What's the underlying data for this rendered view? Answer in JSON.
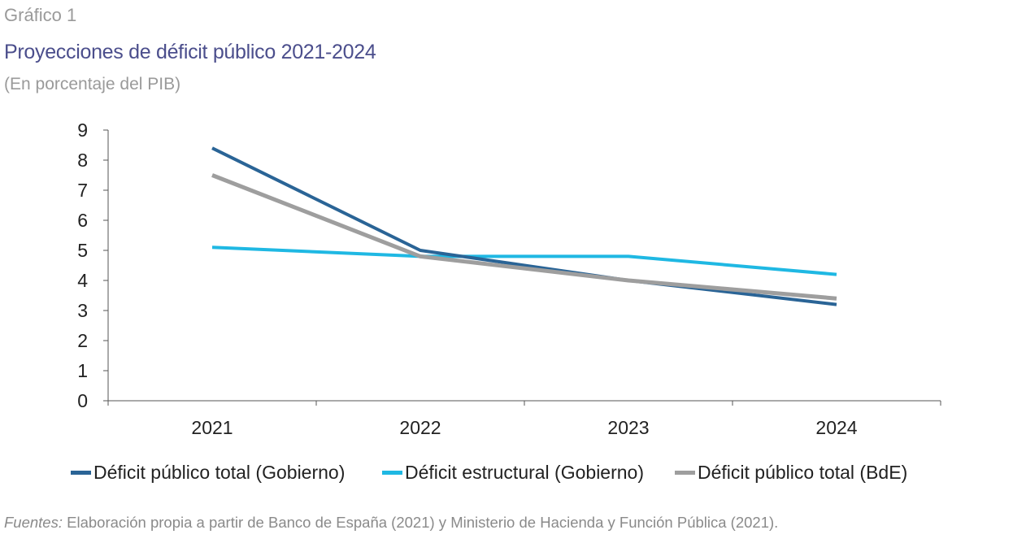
{
  "header": {
    "figure_label": "Gráfico 1",
    "title": "Proyecciones de déficit público 2021-2024",
    "subtitle": "(En porcentaje del PIB)"
  },
  "chart_data": {
    "type": "line",
    "title": "Proyecciones de déficit público 2021-2024",
    "subtitle": "(En porcentaje del PIB)",
    "xlabel": "",
    "ylabel": "",
    "categories": [
      "2021",
      "2022",
      "2023",
      "2024"
    ],
    "ylim": [
      0,
      9
    ],
    "yticks": [
      "0",
      "1",
      "2",
      "3",
      "4",
      "5",
      "6",
      "7",
      "8",
      "9"
    ],
    "grid": false,
    "legend_position": "bottom",
    "series": [
      {
        "name": "Déficit público total (Gobierno)",
        "color": "#2a6496",
        "values": [
          8.4,
          5.0,
          4.0,
          3.2
        ]
      },
      {
        "name": "Déficit estructural (Gobierno)",
        "color": "#1fb8e3",
        "values": [
          5.1,
          4.8,
          4.8,
          4.2
        ]
      },
      {
        "name": "Déficit público total (BdE)",
        "color": "#9e9e9e",
        "values": [
          7.5,
          4.8,
          4.0,
          3.4
        ]
      }
    ]
  },
  "footer": {
    "source_prefix": "Fuentes:",
    "source_text": " Elaboración propia a partir de Banco de España (2021) y Ministerio de Hacienda y Función Pública (2021)."
  }
}
